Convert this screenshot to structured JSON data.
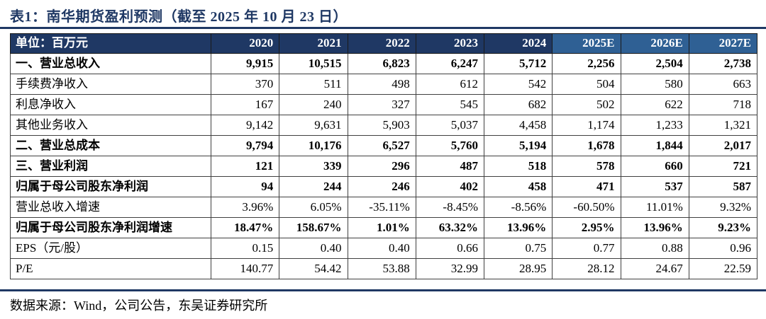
{
  "title": "表1：南华期货盈利预测（截至 2025 年 10 月 23 日）",
  "colors": {
    "header_dark": "#1F3864",
    "header_light": "#2F6094",
    "title_navy": "#1F3864"
  },
  "table": {
    "unit_label": "单位：百万元",
    "columns": [
      {
        "label": "2020",
        "estimate": false
      },
      {
        "label": "2021",
        "estimate": false
      },
      {
        "label": "2022",
        "estimate": false
      },
      {
        "label": "2023",
        "estimate": false
      },
      {
        "label": "2024",
        "estimate": false
      },
      {
        "label": "2025E",
        "estimate": true
      },
      {
        "label": "2026E",
        "estimate": true
      },
      {
        "label": "2027E",
        "estimate": true
      }
    ],
    "rows": [
      {
        "label": "一、营业总收入",
        "bold": true,
        "values": [
          "9,915",
          "10,515",
          "6,823",
          "6,247",
          "5,712",
          "2,256",
          "2,504",
          "2,738"
        ]
      },
      {
        "label": "手续费净收入",
        "bold": false,
        "values": [
          "370",
          "511",
          "498",
          "612",
          "542",
          "504",
          "580",
          "663"
        ]
      },
      {
        "label": "利息净收入",
        "bold": false,
        "values": [
          "167",
          "240",
          "327",
          "545",
          "682",
          "502",
          "622",
          "718"
        ]
      },
      {
        "label": "其他业务收入",
        "bold": false,
        "values": [
          "9,142",
          "9,631",
          "5,903",
          "5,037",
          "4,458",
          "1,174",
          "1,233",
          "1,321"
        ]
      },
      {
        "label": "二、营业总成本",
        "bold": true,
        "values": [
          "9,794",
          "10,176",
          "6,527",
          "5,760",
          "5,194",
          "1,678",
          "1,844",
          "2,017"
        ]
      },
      {
        "label": "三、营业利润",
        "bold": true,
        "values": [
          "121",
          "339",
          "296",
          "487",
          "518",
          "578",
          "660",
          "721"
        ]
      },
      {
        "label": "归属于母公司股东净利润",
        "bold": true,
        "values": [
          "94",
          "244",
          "246",
          "402",
          "458",
          "471",
          "537",
          "587"
        ]
      },
      {
        "label": "营业总收入增速",
        "bold": false,
        "values": [
          "3.96%",
          "6.05%",
          "-35.11%",
          "-8.45%",
          "-8.56%",
          "-60.50%",
          "11.01%",
          "9.32%"
        ]
      },
      {
        "label": "归属于母公司股东净利润增速",
        "bold": true,
        "values": [
          "18.47%",
          "158.67%",
          "1.01%",
          "63.32%",
          "13.96%",
          "2.95%",
          "13.96%",
          "9.23%"
        ]
      },
      {
        "label": "EPS（元/股）",
        "bold": false,
        "values": [
          "0.15",
          "0.40",
          "0.40",
          "0.66",
          "0.75",
          "0.77",
          "0.88",
          "0.96"
        ]
      },
      {
        "label": "P/E",
        "bold": false,
        "values": [
          "140.77",
          "54.42",
          "53.88",
          "32.99",
          "28.95",
          "28.12",
          "24.67",
          "22.59"
        ]
      }
    ]
  },
  "footer": {
    "source": "数据来源：Wind，公司公告，东吴证券研究所"
  }
}
